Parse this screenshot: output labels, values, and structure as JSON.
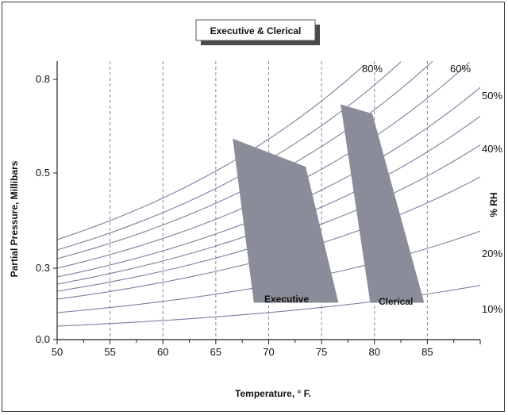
{
  "chart_data": {
    "type": "line",
    "title": "Executive & Clerical",
    "xlabel": "Temperature, ° F.",
    "ylabel": "Partial Pressure, Millibars",
    "right_label": "% RH",
    "xlim": [
      50,
      90
    ],
    "ylim": [
      0.0,
      0.9
    ],
    "x_ticks": [
      50,
      55,
      60,
      65,
      70,
      75,
      80,
      85
    ],
    "x_tick_labels": [
      "50",
      "55",
      "60",
      "65",
      "70",
      "75",
      "80",
      "85"
    ],
    "y_ticks": [
      0.0,
      0.3,
      0.5,
      0.8
    ],
    "y_tick_labels": [
      "0.0",
      "0.3",
      "0.5",
      "0.8"
    ],
    "vertical_gridlines": [
      55,
      60,
      65,
      70,
      75,
      80,
      85
    ],
    "grid": "vertical dashed",
    "rh_curves": [
      10,
      20,
      30,
      40,
      50,
      60,
      70,
      80,
      90,
      100
    ],
    "rh_labels": [
      {
        "text": "10%",
        "rh": 10
      },
      {
        "text": "20%",
        "rh": 20
      },
      {
        "text": "40%",
        "rh": 40
      },
      {
        "text": "50%",
        "rh": 50
      },
      {
        "text": "60%",
        "rh": 60
      },
      {
        "text": "80%",
        "rh": 80
      }
    ],
    "regions": [
      {
        "name": "Executive",
        "polygon": [
          [
            66.6,
            0.61
          ],
          [
            73.5,
            0.52
          ],
          [
            76.6,
            0.155
          ],
          [
            68.6,
            0.155
          ]
        ]
      },
      {
        "name": "Clerical",
        "polygon": [
          [
            76.8,
            0.72
          ],
          [
            79.8,
            0.69
          ],
          [
            84.7,
            0.155
          ],
          [
            79.6,
            0.155
          ]
        ]
      }
    ],
    "colors": {
      "curve": "#7b7fa0",
      "region": "#8a8d99",
      "grid": "#8a8a95",
      "axis": "#222222"
    }
  }
}
